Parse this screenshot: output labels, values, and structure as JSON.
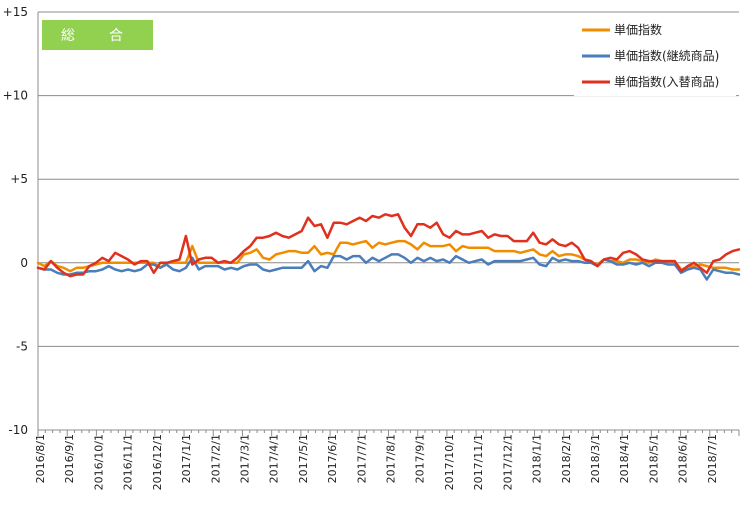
{
  "chart_data": {
    "type": "line",
    "title_badge": "総　合",
    "ylim": [
      -10,
      15
    ],
    "y_ticks": [
      15,
      10,
      5,
      0,
      -5,
      -10
    ],
    "y_tick_labels": [
      "+15",
      "+10",
      "+5",
      "0",
      "-5",
      "-10"
    ],
    "grid": "horizontal",
    "legend_position": "top-right",
    "x_tick_labels": [
      "2016/8/1",
      "2016/9/1",
      "2016/10/1",
      "2016/11/1",
      "2016/12/1",
      "2017/1/1",
      "2017/2/1",
      "2017/3/1",
      "2017/4/1",
      "2017/5/1",
      "2017/6/1",
      "2017/7/1",
      "2017/8/1",
      "2017/9/1",
      "2017/10/1",
      "2017/11/1",
      "2017/12/1",
      "2018/1/1",
      "2018/2/1",
      "2018/3/1",
      "2018/4/1",
      "2018/5/1",
      "2018/6/1",
      "2018/7/1"
    ],
    "x_ticks_per_month": 4,
    "series": [
      {
        "name": "単価指数",
        "color": "#F08C00",
        "values": [
          0.0,
          -0.2,
          0.1,
          -0.2,
          -0.3,
          -0.5,
          -0.3,
          -0.3,
          -0.2,
          -0.1,
          0.0,
          0.0,
          0.0,
          0.0,
          0.0,
          0.0,
          0.0,
          0.0,
          0.0,
          -0.3,
          0.0,
          0.0,
          0.0,
          0.0,
          1.0,
          0.0,
          0.0,
          0.0,
          0.0,
          0.0,
          0.0,
          0.0,
          0.5,
          0.6,
          0.8,
          0.3,
          0.2,
          0.5,
          0.6,
          0.7,
          0.7,
          0.6,
          0.6,
          1.0,
          0.5,
          0.6,
          0.5,
          1.2,
          1.2,
          1.1,
          1.2,
          1.3,
          0.9,
          1.2,
          1.1,
          1.2,
          1.3,
          1.3,
          1.1,
          0.8,
          1.2,
          1.0,
          1.0,
          1.0,
          1.1,
          0.7,
          1.0,
          0.9,
          0.9,
          0.9,
          0.9,
          0.7,
          0.7,
          0.7,
          0.7,
          0.6,
          0.7,
          0.8,
          0.5,
          0.4,
          0.7,
          0.4,
          0.5,
          0.5,
          0.4,
          0.2,
          0.0,
          -0.1,
          0.2,
          0.1,
          0.1,
          0.0,
          0.2,
          0.2,
          0.1,
          0.0,
          0.2,
          0.1,
          0.1,
          0.1,
          -0.4,
          -0.3,
          -0.2,
          -0.1,
          -0.2,
          -0.3,
          -0.3,
          -0.3,
          -0.4,
          -0.4
        ]
      },
      {
        "name": "単価指数(継続商品)",
        "color": "#4A7EBB",
        "values": [
          -0.3,
          -0.4,
          -0.4,
          -0.6,
          -0.7,
          -0.7,
          -0.6,
          -0.6,
          -0.5,
          -0.5,
          -0.4,
          -0.2,
          -0.4,
          -0.5,
          -0.4,
          -0.5,
          -0.4,
          -0.1,
          -0.1,
          -0.3,
          -0.1,
          -0.4,
          -0.5,
          -0.3,
          0.3,
          -0.4,
          -0.2,
          -0.2,
          -0.2,
          -0.4,
          -0.3,
          -0.4,
          -0.2,
          -0.1,
          -0.1,
          -0.4,
          -0.5,
          -0.4,
          -0.3,
          -0.3,
          -0.3,
          -0.3,
          0.1,
          -0.5,
          -0.2,
          -0.3,
          0.4,
          0.4,
          0.2,
          0.4,
          0.4,
          0.0,
          0.3,
          0.1,
          0.3,
          0.5,
          0.5,
          0.3,
          0.0,
          0.3,
          0.1,
          0.3,
          0.1,
          0.2,
          0.0,
          0.4,
          0.2,
          0.0,
          0.1,
          0.2,
          -0.1,
          0.1,
          0.1,
          0.1,
          0.1,
          0.1,
          0.2,
          0.3,
          -0.1,
          -0.2,
          0.3,
          0.1,
          0.2,
          0.1,
          0.1,
          0.0,
          0.0,
          -0.2,
          0.2,
          0.1,
          -0.1,
          -0.1,
          0.0,
          -0.1,
          0.0,
          -0.2,
          0.0,
          0.0,
          -0.1,
          -0.1,
          -0.6,
          -0.4,
          -0.3,
          -0.4,
          -1.0,
          -0.4,
          -0.5,
          -0.6,
          -0.6,
          -0.7
        ]
      },
      {
        "name": "単価指数(入替商品)",
        "color": "#E0301E",
        "values": [
          -0.3,
          -0.4,
          0.1,
          -0.3,
          -0.6,
          -0.8,
          -0.7,
          -0.7,
          -0.2,
          0.0,
          0.3,
          0.1,
          0.6,
          0.4,
          0.2,
          -0.1,
          0.1,
          0.1,
          -0.6,
          0.0,
          0.0,
          0.1,
          0.2,
          1.6,
          -0.1,
          0.2,
          0.3,
          0.3,
          0.0,
          0.1,
          0.0,
          0.3,
          0.7,
          1.0,
          1.5,
          1.5,
          1.6,
          1.8,
          1.6,
          1.5,
          1.7,
          1.9,
          2.7,
          2.2,
          2.3,
          1.5,
          2.4,
          2.4,
          2.3,
          2.5,
          2.7,
          2.5,
          2.8,
          2.7,
          2.9,
          2.8,
          2.9,
          2.1,
          1.6,
          2.3,
          2.3,
          2.1,
          2.4,
          1.7,
          1.5,
          1.9,
          1.7,
          1.7,
          1.8,
          1.9,
          1.5,
          1.7,
          1.6,
          1.6,
          1.3,
          1.3,
          1.3,
          1.8,
          1.2,
          1.1,
          1.4,
          1.1,
          1.0,
          1.2,
          0.9,
          0.2,
          0.1,
          -0.2,
          0.2,
          0.3,
          0.2,
          0.6,
          0.7,
          0.5,
          0.2,
          0.1,
          0.1,
          0.1,
          0.1,
          0.1,
          -0.5,
          -0.2,
          0.0,
          -0.3,
          -0.6,
          0.1,
          0.2,
          0.5,
          0.7,
          0.8
        ]
      }
    ]
  }
}
